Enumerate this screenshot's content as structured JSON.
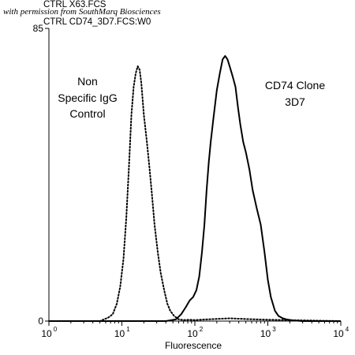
{
  "header": {
    "watermark": "with permission from SouthMarq Biosciences",
    "file_line_1": "CTRL X63.FCS",
    "file_line_2": "CTRL CD74_3D7.FCS:W0"
  },
  "chart_data": {
    "type": "line",
    "x_scale": "log",
    "xlim": [
      1,
      10000
    ],
    "ylim": [
      0,
      85
    ],
    "xlabel": "Fluorescence",
    "ylabel": "",
    "y_ticks": [
      {
        "label": "0",
        "value": 0
      },
      {
        "label": "85",
        "value": 85
      }
    ],
    "x_ticks": [
      {
        "base": "10",
        "exp": "0",
        "value": 1
      },
      {
        "base": "10",
        "exp": "1",
        "value": 10
      },
      {
        "base": "10",
        "exp": "2",
        "value": 100
      },
      {
        "base": "10",
        "exp": "3",
        "value": 1000
      },
      {
        "base": "10",
        "exp": "4",
        "value": 10000
      }
    ],
    "annotations": {
      "isotype": [
        "Non",
        "Specific IgG",
        "Control"
      ],
      "clone": [
        "CD74 Clone",
        "3D7"
      ]
    },
    "series": [
      {
        "style": "dotted",
        "x": [
          1,
          5,
          6.5,
          7.5,
          8.5,
          9.5,
          10.5,
          11.5,
          12.5,
          13.5,
          14.5,
          15.5,
          16.5,
          17.5,
          18.5,
          20,
          22,
          24,
          26,
          28,
          31,
          34,
          38,
          42,
          46,
          52,
          60,
          70,
          85,
          100,
          150,
          300,
          500,
          1000,
          3000,
          10000
        ],
        "y": [
          0,
          0,
          1,
          2,
          5,
          10,
          18,
          30,
          45,
          60,
          68,
          72,
          74,
          73,
          69,
          60,
          52,
          44,
          36,
          28,
          20,
          14,
          9,
          5,
          3,
          1.5,
          0.5,
          0.3,
          0.4,
          0.3,
          0.5,
          0.8,
          0.6,
          0.4,
          0.2,
          0
        ]
      },
      {
        "style": "solid",
        "x": [
          1,
          40,
          55,
          65,
          75,
          85,
          95,
          105,
          115,
          125,
          135,
          145,
          155,
          165,
          180,
          200,
          220,
          240,
          260,
          280,
          300,
          320,
          340,
          360,
          390,
          420,
          460,
          500,
          560,
          620,
          700,
          800,
          900,
          1000,
          1100,
          1250,
          1400,
          1600,
          1800,
          2200,
          3000,
          10000
        ],
        "y": [
          0,
          0,
          0.5,
          2,
          4,
          6,
          7,
          9,
          13,
          20,
          28,
          38,
          46,
          52,
          59,
          67,
          72,
          76,
          77,
          76,
          74,
          72,
          70,
          68,
          62,
          57,
          52,
          49,
          44,
          38,
          33,
          28,
          20,
          12,
          7,
          3,
          1.5,
          0.8,
          0.5,
          0.2,
          0,
          0
        ]
      }
    ]
  }
}
